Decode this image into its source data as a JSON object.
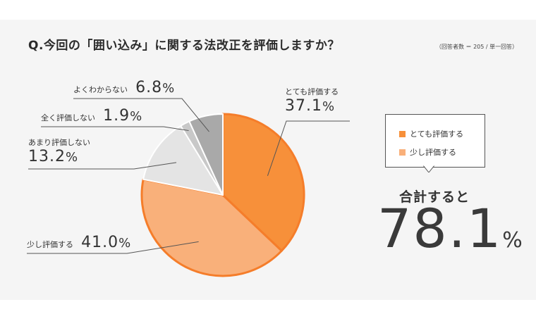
{
  "question": "Q.今回の「囲い込み」に関する法改正を評価しますか？",
  "respondents": "（回答者数 ＝ 205 / 単一回答）",
  "chart_data": {
    "type": "pie",
    "start_angle_deg": 0,
    "direction": "clockwise",
    "slices": [
      {
        "label": "とても評価する",
        "value": 37.1,
        "display": "37.1",
        "color": "#f7903a"
      },
      {
        "label": "少し評価する",
        "value": 41.0,
        "display": "41.0",
        "color": "#f9b07a"
      },
      {
        "label": "あまり評価しない",
        "value": 13.2,
        "display": "13.2",
        "color": "#e4e4e4"
      },
      {
        "label": "全く評価しない",
        "value": 1.9,
        "display": "1.9",
        "color": "#c8c8c8"
      },
      {
        "label": "よくわからない",
        "value": 6.8,
        "display": "6.8",
        "color": "#a9a9a9"
      }
    ],
    "highlight_stroke": "#f57d2a"
  },
  "labels": {
    "pct_sign": "%"
  },
  "legend": {
    "items": [
      {
        "label": "とても評価する",
        "color": "#f7903a"
      },
      {
        "label": "少し評価する",
        "color": "#f9b07a"
      }
    ]
  },
  "summary": {
    "label": "合計すると",
    "value": "78.1"
  }
}
